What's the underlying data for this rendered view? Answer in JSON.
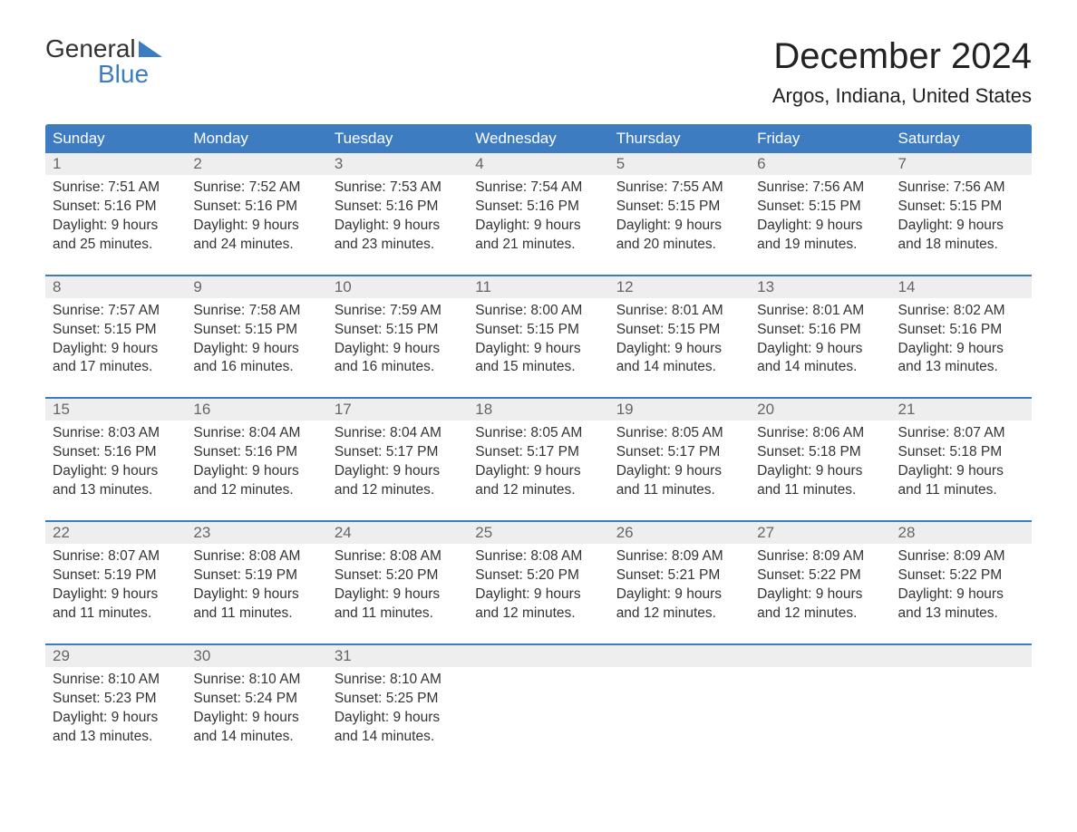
{
  "logo": {
    "word1": "General",
    "word2": "Blue"
  },
  "title": "December 2024",
  "location": "Argos, Indiana, United States",
  "colors": {
    "header_bg": "#3d7cc0",
    "header_text": "#ffffff",
    "daynum_bg": "#eeeeee",
    "daynum_text": "#666666",
    "body_text": "#333333",
    "page_bg": "#ffffff",
    "week_border": "#3d7cc0"
  },
  "typography": {
    "title_fontsize": 40,
    "location_fontsize": 22,
    "dayheader_fontsize": 17,
    "cell_fontsize": 15.5
  },
  "day_names": [
    "Sunday",
    "Monday",
    "Tuesday",
    "Wednesday",
    "Thursday",
    "Friday",
    "Saturday"
  ],
  "weeks": [
    [
      {
        "n": "1",
        "sr": "7:51 AM",
        "ss": "5:16 PM",
        "dl": "9 hours and 25 minutes."
      },
      {
        "n": "2",
        "sr": "7:52 AM",
        "ss": "5:16 PM",
        "dl": "9 hours and 24 minutes."
      },
      {
        "n": "3",
        "sr": "7:53 AM",
        "ss": "5:16 PM",
        "dl": "9 hours and 23 minutes."
      },
      {
        "n": "4",
        "sr": "7:54 AM",
        "ss": "5:16 PM",
        "dl": "9 hours and 21 minutes."
      },
      {
        "n": "5",
        "sr": "7:55 AM",
        "ss": "5:15 PM",
        "dl": "9 hours and 20 minutes."
      },
      {
        "n": "6",
        "sr": "7:56 AM",
        "ss": "5:15 PM",
        "dl": "9 hours and 19 minutes."
      },
      {
        "n": "7",
        "sr": "7:56 AM",
        "ss": "5:15 PM",
        "dl": "9 hours and 18 minutes."
      }
    ],
    [
      {
        "n": "8",
        "sr": "7:57 AM",
        "ss": "5:15 PM",
        "dl": "9 hours and 17 minutes."
      },
      {
        "n": "9",
        "sr": "7:58 AM",
        "ss": "5:15 PM",
        "dl": "9 hours and 16 minutes."
      },
      {
        "n": "10",
        "sr": "7:59 AM",
        "ss": "5:15 PM",
        "dl": "9 hours and 16 minutes."
      },
      {
        "n": "11",
        "sr": "8:00 AM",
        "ss": "5:15 PM",
        "dl": "9 hours and 15 minutes."
      },
      {
        "n": "12",
        "sr": "8:01 AM",
        "ss": "5:15 PM",
        "dl": "9 hours and 14 minutes."
      },
      {
        "n": "13",
        "sr": "8:01 AM",
        "ss": "5:16 PM",
        "dl": "9 hours and 14 minutes."
      },
      {
        "n": "14",
        "sr": "8:02 AM",
        "ss": "5:16 PM",
        "dl": "9 hours and 13 minutes."
      }
    ],
    [
      {
        "n": "15",
        "sr": "8:03 AM",
        "ss": "5:16 PM",
        "dl": "9 hours and 13 minutes."
      },
      {
        "n": "16",
        "sr": "8:04 AM",
        "ss": "5:16 PM",
        "dl": "9 hours and 12 minutes."
      },
      {
        "n": "17",
        "sr": "8:04 AM",
        "ss": "5:17 PM",
        "dl": "9 hours and 12 minutes."
      },
      {
        "n": "18",
        "sr": "8:05 AM",
        "ss": "5:17 PM",
        "dl": "9 hours and 12 minutes."
      },
      {
        "n": "19",
        "sr": "8:05 AM",
        "ss": "5:17 PM",
        "dl": "9 hours and 11 minutes."
      },
      {
        "n": "20",
        "sr": "8:06 AM",
        "ss": "5:18 PM",
        "dl": "9 hours and 11 minutes."
      },
      {
        "n": "21",
        "sr": "8:07 AM",
        "ss": "5:18 PM",
        "dl": "9 hours and 11 minutes."
      }
    ],
    [
      {
        "n": "22",
        "sr": "8:07 AM",
        "ss": "5:19 PM",
        "dl": "9 hours and 11 minutes."
      },
      {
        "n": "23",
        "sr": "8:08 AM",
        "ss": "5:19 PM",
        "dl": "9 hours and 11 minutes."
      },
      {
        "n": "24",
        "sr": "8:08 AM",
        "ss": "5:20 PM",
        "dl": "9 hours and 11 minutes."
      },
      {
        "n": "25",
        "sr": "8:08 AM",
        "ss": "5:20 PM",
        "dl": "9 hours and 12 minutes."
      },
      {
        "n": "26",
        "sr": "8:09 AM",
        "ss": "5:21 PM",
        "dl": "9 hours and 12 minutes."
      },
      {
        "n": "27",
        "sr": "8:09 AM",
        "ss": "5:22 PM",
        "dl": "9 hours and 12 minutes."
      },
      {
        "n": "28",
        "sr": "8:09 AM",
        "ss": "5:22 PM",
        "dl": "9 hours and 13 minutes."
      }
    ],
    [
      {
        "n": "29",
        "sr": "8:10 AM",
        "ss": "5:23 PM",
        "dl": "9 hours and 13 minutes."
      },
      {
        "n": "30",
        "sr": "8:10 AM",
        "ss": "5:24 PM",
        "dl": "9 hours and 14 minutes."
      },
      {
        "n": "31",
        "sr": "8:10 AM",
        "ss": "5:25 PM",
        "dl": "9 hours and 14 minutes."
      },
      null,
      null,
      null,
      null
    ]
  ],
  "labels": {
    "sunrise": "Sunrise: ",
    "sunset": "Sunset: ",
    "daylight": "Daylight: "
  }
}
